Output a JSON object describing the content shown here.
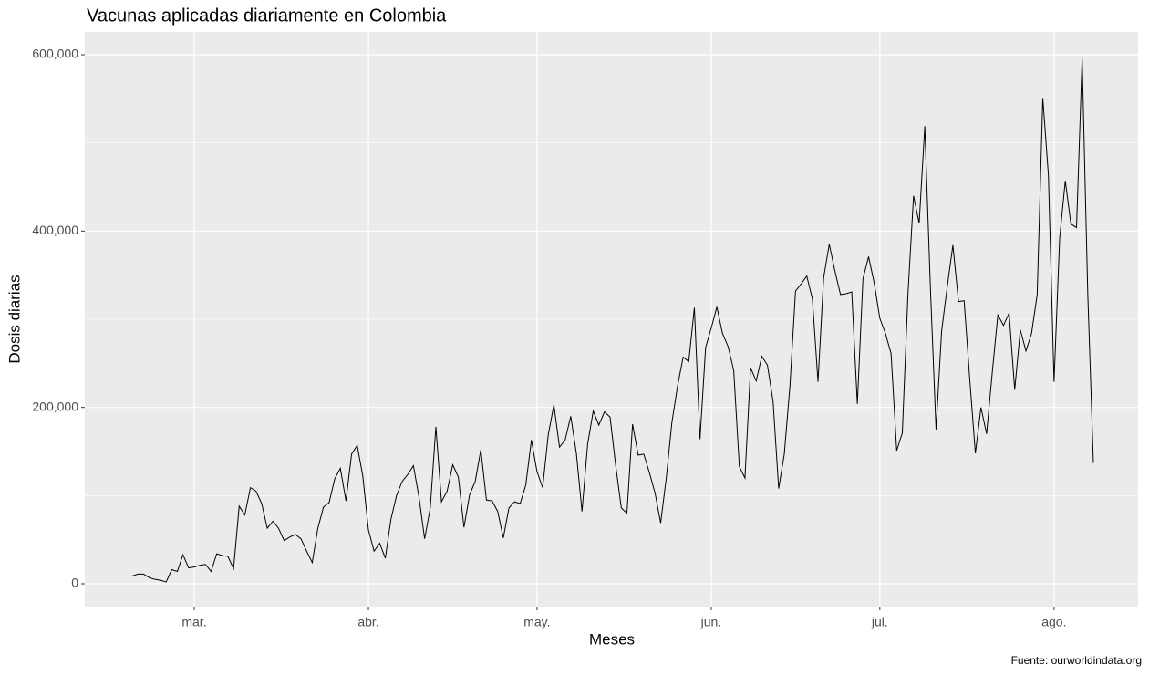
{
  "chart_data": {
    "type": "line",
    "title": "Vacunas aplicadas diariamente en Colombia",
    "x_label": "Meses",
    "y_label": "Dosis diarias",
    "caption": "Fuente: ourworldindata.org",
    "categories": [
      null,
      null,
      null,
      null,
      null,
      null,
      null,
      null,
      null,
      null,
      null,
      "mar.",
      null,
      null,
      null,
      null,
      null,
      null,
      null,
      null,
      null,
      null,
      null,
      null,
      null,
      null,
      null,
      null,
      null,
      null,
      null,
      null,
      null,
      null,
      null,
      null,
      null,
      null,
      null,
      null,
      null,
      null,
      "abr.",
      null,
      null,
      null,
      null,
      null,
      null,
      null,
      null,
      null,
      null,
      null,
      null,
      null,
      null,
      null,
      null,
      null,
      null,
      null,
      null,
      null,
      null,
      null,
      null,
      null,
      null,
      null,
      null,
      null,
      "may.",
      null,
      null,
      null,
      null,
      null,
      null,
      null,
      null,
      null,
      null,
      null,
      null,
      null,
      null,
      null,
      null,
      null,
      null,
      null,
      null,
      null,
      null,
      null,
      null,
      null,
      null,
      null,
      null,
      null,
      null,
      "jun.",
      null,
      null,
      null,
      null,
      null,
      null,
      null,
      null,
      null,
      null,
      null,
      null,
      null,
      null,
      null,
      null,
      null,
      null,
      null,
      null,
      null,
      null,
      null,
      null,
      null,
      null,
      null,
      null,
      null,
      "jul.",
      null,
      null,
      null,
      null,
      null,
      null,
      null,
      null,
      null,
      null,
      null,
      null,
      null,
      null,
      null,
      null,
      null,
      null,
      null,
      null,
      null,
      null,
      null,
      null,
      null,
      null,
      null,
      null,
      null,
      null,
      "ago.",
      null,
      null,
      null,
      null,
      null,
      null,
      null
    ],
    "series": [
      {
        "name": "Dosis diarias",
        "color": "#000000",
        "values": [
          9000,
          11000,
          11000,
          7000,
          5000,
          4000,
          2000,
          16000,
          14000,
          33000,
          18000,
          19000,
          21000,
          22000,
          14000,
          34000,
          32000,
          31000,
          17000,
          88000,
          78000,
          109000,
          105000,
          91000,
          63000,
          71000,
          63000,
          49000,
          53000,
          56000,
          51000,
          37000,
          24000,
          63000,
          87000,
          92000,
          119000,
          131000,
          94000,
          147000,
          157000,
          122000,
          61000,
          37000,
          46000,
          29000,
          73000,
          100000,
          116000,
          124000,
          134000,
          98000,
          51000,
          86000,
          178000,
          93000,
          105000,
          135000,
          121000,
          64000,
          101000,
          116000,
          152000,
          95000,
          94000,
          82000,
          52000,
          86000,
          93000,
          91000,
          112000,
          163000,
          127000,
          109000,
          169000,
          203000,
          155000,
          163000,
          190000,
          148000,
          82000,
          158000,
          196000,
          180000,
          195000,
          189000,
          134000,
          86000,
          80000,
          181000,
          146000,
          147000,
          126000,
          103000,
          69000,
          120000,
          183000,
          224000,
          257000,
          252000,
          313000,
          164000,
          268000,
          290000,
          314000,
          284000,
          269000,
          242000,
          133000,
          120000,
          245000,
          230000,
          258000,
          248000,
          207000,
          108000,
          147000,
          224000,
          332000,
          340000,
          349000,
          323000,
          229000,
          347000,
          385000,
          355000,
          328000,
          329000,
          331000,
          204000,
          346000,
          371000,
          341000,
          301000,
          284000,
          261000,
          151000,
          171000,
          328000,
          440000,
          409000,
          519000,
          335000,
          175000,
          287000,
          337000,
          384000,
          320000,
          321000,
          232000,
          148000,
          200000,
          170000,
          239000,
          305000,
          293000,
          307000,
          220000,
          288000,
          264000,
          284000,
          328000,
          551000,
          463000,
          229000,
          392000,
          457000,
          408000,
          404000,
          596000,
          329000,
          137000
        ]
      }
    ],
    "ylim": [
      -25862,
      625862
    ],
    "yticks": [
      0,
      {
        "value": 200000,
        "label": "200,000"
      },
      {
        "value": 400000,
        "label": "400,000"
      },
      {
        "value": 600000,
        "label": "600,000"
      }
    ],
    "y_minor_ticks": [
      100000,
      300000,
      500000
    ],
    "grid": true,
    "legend": false
  }
}
